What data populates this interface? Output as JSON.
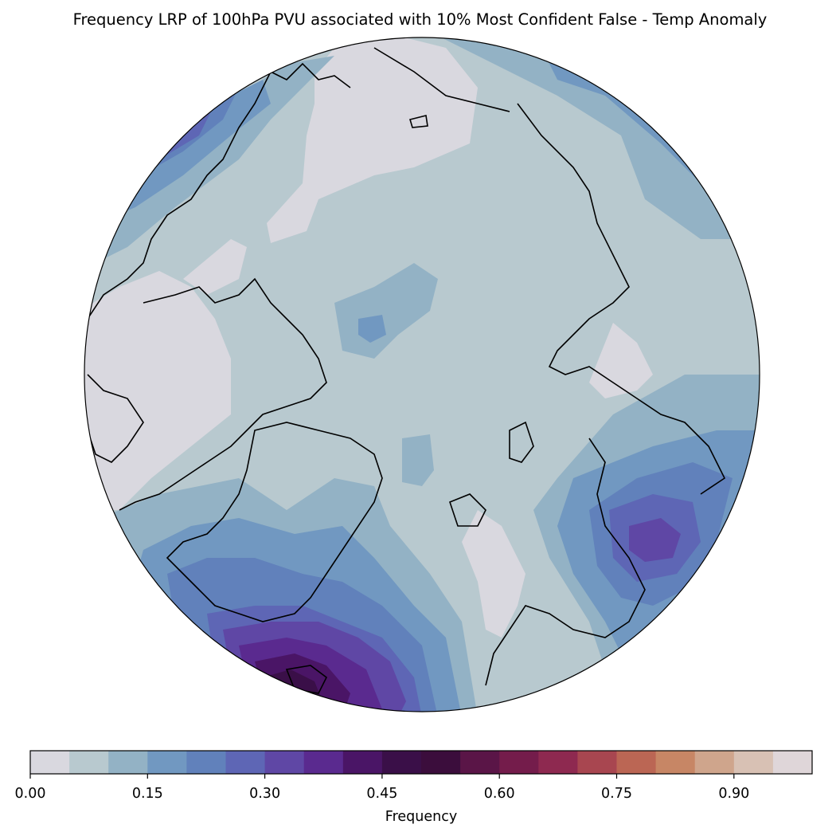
{
  "title": "Frequency LRP of 100hPa PVU associated with 10% Most Confident False - Temp Anomaly",
  "colorbar": {
    "label": "Frequency",
    "ticks": [
      "0.00",
      "0.15",
      "0.30",
      "0.45",
      "0.60",
      "0.75",
      "0.90"
    ],
    "tick_values": [
      0.0,
      0.15,
      0.3,
      0.45,
      0.6,
      0.75,
      0.9
    ],
    "range": [
      0.0,
      1.0
    ],
    "level_step": 0.05,
    "colors": [
      "#d9d8df",
      "#b8c9cf",
      "#93b2c5",
      "#7198c1",
      "#6181bb",
      "#5e66b5",
      "#5f47a5",
      "#5a2a8f",
      "#4a1566",
      "#3a0f48",
      "#3b0d3c",
      "#5a1547",
      "#741c4b",
      "#8e2950",
      "#a84650",
      "#bb6654",
      "#c78665",
      "#cfa58c",
      "#d8c1b4",
      "#dfd6d9"
    ]
  },
  "map": {
    "projection": "north-polar-stereographic",
    "ocean_base_color": "#b8c9cf",
    "regions": [
      {
        "name": "high-frequency-north-atlantic",
        "peak_value": 0.5
      },
      {
        "name": "high-frequency-north-pacific",
        "peak_value": 0.35
      },
      {
        "name": "high-frequency-canada-pacific",
        "peak_value": 0.3
      }
    ]
  }
}
